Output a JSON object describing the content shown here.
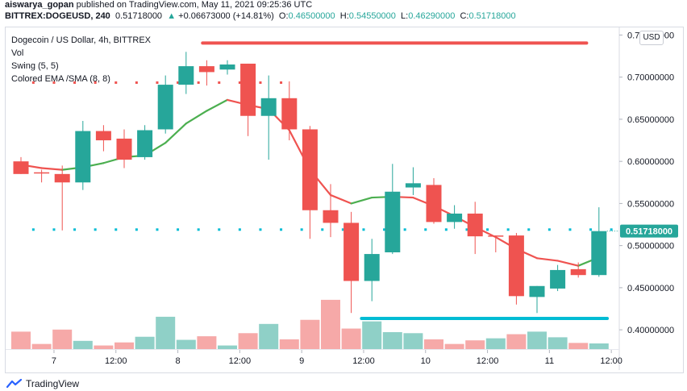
{
  "header": {
    "line1_user": "aiswarya_gopan",
    "line1_rest": " published on TradingView.com, May 11, 2021 09:25:36 UTC",
    "symbol": "BITTREX:DOGEUSD, 240",
    "last": "0.51718000",
    "change_arrow": "▲",
    "change": "+0.06673000 (+14.81%)",
    "o_label": "O:",
    "o_value": "0.46500000",
    "h_label": "H:",
    "h_value": "0.54550000",
    "l_label": "L:",
    "l_value": "0.46290000",
    "c_label": "C:",
    "c_value": "0.51718000"
  },
  "legend": {
    "title": "Dogecoin / US Dollar, 4h, BITTREX",
    "vol": "Vol",
    "swing": "Swing (5, 5)",
    "ema": "Colored EMA /SMA (8, 8)"
  },
  "currency_button": "USD",
  "brand": "TradingView",
  "colors": {
    "up": "#26a69a",
    "down": "#ef5350",
    "up_vol": "#8fd0c7",
    "down_vol": "#f6a9a8",
    "ema_up": "#4caf50",
    "ema_down": "#ef5350",
    "resistance": "#ef5350",
    "support": "#00bcd4",
    "price_label": "#26a69a"
  },
  "chart_data": {
    "type": "candlestick",
    "title": "Dogecoin / US Dollar, 4h, BITTREX",
    "ylim": [
      0.38,
      0.76
    ],
    "y_ticks": [
      "0.75000000",
      "0.70000000",
      "0.65000000",
      "0.60000000",
      "0.55000000",
      "0.50000000",
      "0.45000000",
      "0.40000000"
    ],
    "y_tick_values": [
      0.75,
      0.7,
      0.65,
      0.6,
      0.55,
      0.5,
      0.45,
      0.4
    ],
    "x_ticks": [
      {
        "label": "7",
        "index": 1.6
      },
      {
        "label": "12:00",
        "index": 4.6
      },
      {
        "label": "8",
        "index": 7.6
      },
      {
        "label": "12:00",
        "index": 10.6
      },
      {
        "label": "9",
        "index": 13.6
      },
      {
        "label": "12:00",
        "index": 16.6
      },
      {
        "label": "10",
        "index": 19.6
      },
      {
        "label": "12:00",
        "index": 22.6
      },
      {
        "label": "11",
        "index": 25.6
      },
      {
        "label": "12:00",
        "index": 28.6
      }
    ],
    "candles": [
      {
        "o": 0.6,
        "h": 0.605,
        "l": 0.585,
        "c": 0.585
      },
      {
        "o": 0.587,
        "h": 0.59,
        "l": 0.575,
        "c": 0.586
      },
      {
        "o": 0.585,
        "h": 0.595,
        "l": 0.518,
        "c": 0.575
      },
      {
        "o": 0.575,
        "h": 0.648,
        "l": 0.566,
        "c": 0.636
      },
      {
        "o": 0.636,
        "h": 0.643,
        "l": 0.612,
        "c": 0.625
      },
      {
        "o": 0.627,
        "h": 0.638,
        "l": 0.592,
        "c": 0.602
      },
      {
        "o": 0.605,
        "h": 0.643,
        "l": 0.602,
        "c": 0.637
      },
      {
        "o": 0.638,
        "h": 0.702,
        "l": 0.633,
        "c": 0.691
      },
      {
        "o": 0.691,
        "h": 0.73,
        "l": 0.68,
        "c": 0.713
      },
      {
        "o": 0.713,
        "h": 0.72,
        "l": 0.69,
        "c": 0.706
      },
      {
        "o": 0.709,
        "h": 0.72,
        "l": 0.703,
        "c": 0.715
      },
      {
        "o": 0.716,
        "h": 0.716,
        "l": 0.63,
        "c": 0.654
      },
      {
        "o": 0.654,
        "h": 0.702,
        "l": 0.602,
        "c": 0.675
      },
      {
        "o": 0.675,
        "h": 0.695,
        "l": 0.625,
        "c": 0.638
      },
      {
        "o": 0.638,
        "h": 0.642,
        "l": 0.508,
        "c": 0.542
      },
      {
        "o": 0.542,
        "h": 0.573,
        "l": 0.51,
        "c": 0.527
      },
      {
        "o": 0.527,
        "h": 0.54,
        "l": 0.42,
        "c": 0.458
      },
      {
        "o": 0.458,
        "h": 0.508,
        "l": 0.434,
        "c": 0.49
      },
      {
        "o": 0.492,
        "h": 0.597,
        "l": 0.49,
        "c": 0.564
      },
      {
        "o": 0.569,
        "h": 0.593,
        "l": 0.56,
        "c": 0.574
      },
      {
        "o": 0.572,
        "h": 0.58,
        "l": 0.526,
        "c": 0.528
      },
      {
        "o": 0.528,
        "h": 0.548,
        "l": 0.52,
        "c": 0.538
      },
      {
        "o": 0.538,
        "h": 0.552,
        "l": 0.49,
        "c": 0.511
      },
      {
        "o": 0.512,
        "h": 0.512,
        "l": 0.492,
        "c": 0.511
      },
      {
        "o": 0.512,
        "h": 0.515,
        "l": 0.43,
        "c": 0.44
      },
      {
        "o": 0.439,
        "h": 0.452,
        "l": 0.42,
        "c": 0.452
      },
      {
        "o": 0.449,
        "h": 0.477,
        "l": 0.446,
        "c": 0.471
      },
      {
        "o": 0.472,
        "h": 0.48,
        "l": 0.462,
        "c": 0.465
      },
      {
        "o": 0.465,
        "h": 0.5455,
        "l": 0.4629,
        "c": 0.51718
      }
    ],
    "volumes": [
      {
        "v": 0.034,
        "dir": "down"
      },
      {
        "v": 0.01,
        "dir": "down"
      },
      {
        "v": 0.038,
        "dir": "down"
      },
      {
        "v": 0.016,
        "dir": "up"
      },
      {
        "v": 0.007,
        "dir": "down"
      },
      {
        "v": 0.013,
        "dir": "down"
      },
      {
        "v": 0.024,
        "dir": "up"
      },
      {
        "v": 0.063,
        "dir": "up"
      },
      {
        "v": 0.018,
        "dir": "up"
      },
      {
        "v": 0.025,
        "dir": "down"
      },
      {
        "v": 0.007,
        "dir": "up"
      },
      {
        "v": 0.031,
        "dir": "down"
      },
      {
        "v": 0.049,
        "dir": "up"
      },
      {
        "v": 0.019,
        "dir": "down"
      },
      {
        "v": 0.057,
        "dir": "down"
      },
      {
        "v": 0.096,
        "dir": "down"
      },
      {
        "v": 0.04,
        "dir": "down"
      },
      {
        "v": 0.054,
        "dir": "up"
      },
      {
        "v": 0.033,
        "dir": "up"
      },
      {
        "v": 0.031,
        "dir": "up"
      },
      {
        "v": 0.019,
        "dir": "down"
      },
      {
        "v": 0.01,
        "dir": "down"
      },
      {
        "v": 0.017,
        "dir": "down"
      },
      {
        "v": 0.021,
        "dir": "up"
      },
      {
        "v": 0.029,
        "dir": "down"
      },
      {
        "v": 0.034,
        "dir": "up"
      },
      {
        "v": 0.023,
        "dir": "up"
      },
      {
        "v": 0.012,
        "dir": "down"
      },
      {
        "v": 0.011,
        "dir": "up"
      }
    ],
    "vol_max": 0.11,
    "ema": [
      0.596,
      0.592,
      0.59,
      0.593,
      0.598,
      0.605,
      0.607,
      0.622,
      0.645,
      0.66,
      0.673,
      0.667,
      0.662,
      0.637,
      0.59,
      0.56,
      0.55,
      0.557,
      0.558,
      0.557,
      0.547,
      0.535,
      0.522,
      0.51,
      0.496,
      0.485,
      0.482,
      0.476,
      0.486
    ],
    "resistance": {
      "value": 0.7405,
      "from": 8.8,
      "to": 27.4
    },
    "support": {
      "value": 0.4135,
      "from": 16.5,
      "to": 28.4
    },
    "swing_high": {
      "value": 0.6935,
      "from": 0.6,
      "to": 12.8
    },
    "swing_low": {
      "value": 0.519,
      "from": 0.6,
      "to": 28.6
    },
    "current_price": 0.51718,
    "current_price_label": "0.51718000"
  }
}
